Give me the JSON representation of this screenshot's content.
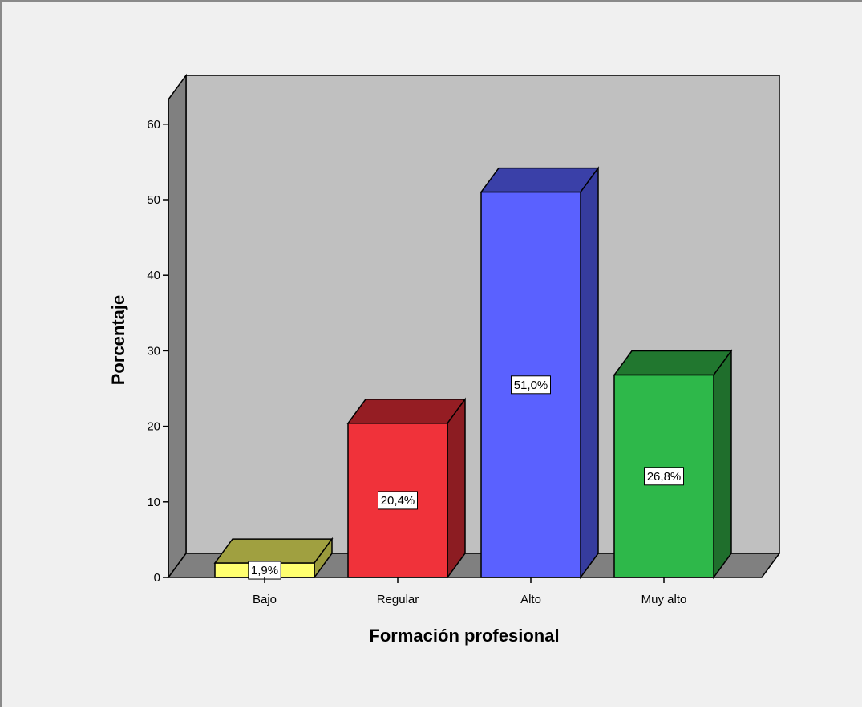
{
  "chart_data": {
    "type": "bar",
    "style": "3d",
    "xlabel": "Formación profesional",
    "ylabel": "Porcentaje",
    "categories": [
      "Bajo",
      "Regular",
      "Alto",
      "Muy alto"
    ],
    "values": [
      1.9,
      20.4,
      51.0,
      26.8
    ],
    "data_labels": [
      "1,9%",
      "20,4%",
      "51,0%",
      "26,8%"
    ],
    "ylim": [
      0,
      65
    ],
    "yticks": [
      0,
      10,
      20,
      30,
      40,
      50,
      60
    ],
    "grid": false,
    "legend": "none",
    "colors": {
      "bars": [
        {
          "front": "#ffff70",
          "side": "#9a9a3c",
          "top": "#a0a040"
        },
        {
          "front": "#f0323a",
          "side": "#8c1c22",
          "top": "#951d23"
        },
        {
          "front": "#5a61ff",
          "side": "#363c9e",
          "top": "#3a40a8"
        },
        {
          "front": "#2eb84a",
          "side": "#1f6e2c",
          "top": "#21772f"
        }
      ],
      "back_wall": "#c0c0c0",
      "side_wall": "#808080",
      "floor": "#808080",
      "background": "#f0f0f0"
    }
  }
}
